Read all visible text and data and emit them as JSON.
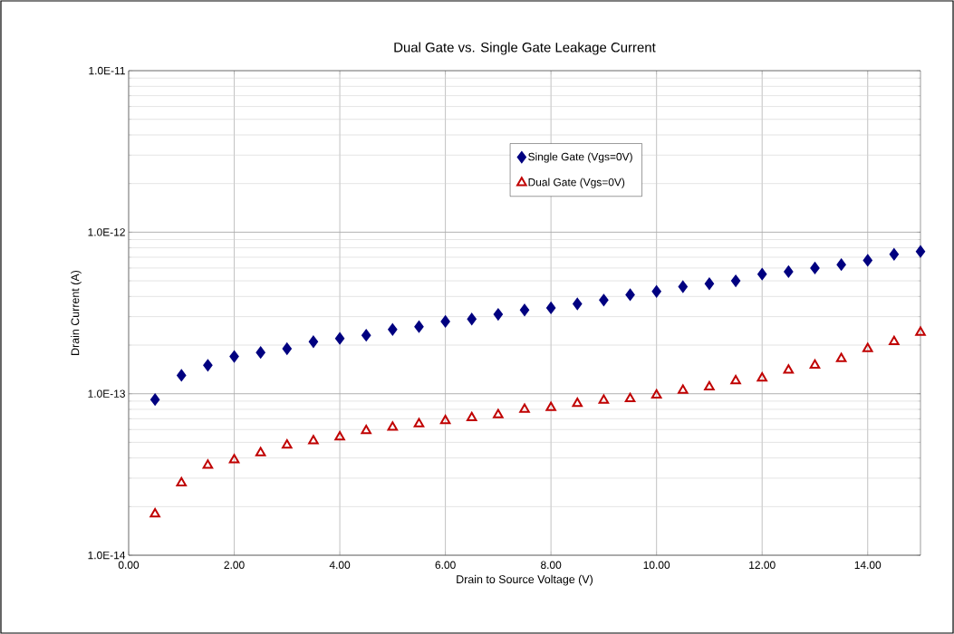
{
  "chart_data": {
    "type": "scatter",
    "title": "Dual Gate vs. Single Gate Leakage Current",
    "xlabel": "Drain to Source Voltage (V)",
    "ylabel": "Drain Current (A)",
    "x": [
      0.5,
      1.0,
      1.5,
      2.0,
      2.5,
      3.0,
      3.5,
      4.0,
      4.5,
      5.0,
      5.5,
      6.0,
      6.5,
      7.0,
      7.5,
      8.0,
      8.5,
      9.0,
      9.5,
      10.0,
      10.5,
      11.0,
      11.5,
      12.0,
      12.5,
      13.0,
      13.5,
      14.0,
      14.5,
      15.0
    ],
    "series": [
      {
        "name": "Single Gate (Vgs=0V)",
        "color": "#000080",
        "marker": "diamond",
        "values": [
          9.2e-14,
          1.3e-13,
          1.5e-13,
          1.7e-13,
          1.8e-13,
          1.9e-13,
          2.1e-13,
          2.2e-13,
          2.3e-13,
          2.5e-13,
          2.6e-13,
          2.8e-13,
          2.9e-13,
          3.1e-13,
          3.3e-13,
          3.4e-13,
          3.6e-13,
          3.8e-13,
          4.1e-13,
          4.3e-13,
          4.6e-13,
          4.8e-13,
          5e-13,
          5.5e-13,
          5.7e-13,
          6e-13,
          6.3e-13,
          6.7e-13,
          7.3e-13,
          7.6e-13
        ]
      },
      {
        "name": "Dual Gate (Vgs=0V)",
        "color": "#c00000",
        "marker": "triangle",
        "values": [
          1.8e-14,
          2.8e-14,
          3.6e-14,
          3.9e-14,
          4.3e-14,
          4.8e-14,
          5.1e-14,
          5.4e-14,
          5.9e-14,
          6.2e-14,
          6.5e-14,
          6.8e-14,
          7.1e-14,
          7.4e-14,
          8e-14,
          8.2e-14,
          8.7e-14,
          9.1e-14,
          9.3e-14,
          9.8e-14,
          1.05e-13,
          1.1e-13,
          1.2e-13,
          1.25e-13,
          1.4e-13,
          1.5e-13,
          1.65e-13,
          1.9e-13,
          2.1e-13,
          2.4e-13
        ]
      }
    ],
    "log": "y",
    "grid": true,
    "legend": "top",
    "xlim": [
      0,
      15
    ],
    "ylim": [
      1e-14,
      1e-11
    ],
    "xticks": [
      {
        "value": 0,
        "label": "0.00"
      },
      {
        "value": 2,
        "label": "2.00"
      },
      {
        "value": 4,
        "label": "4.00"
      },
      {
        "value": 6,
        "label": "6.00"
      },
      {
        "value": 8,
        "label": "8.00"
      },
      {
        "value": 10,
        "label": "10.00"
      },
      {
        "value": 12,
        "label": "12.00"
      },
      {
        "value": 14,
        "label": "14.00"
      }
    ],
    "yticks": [
      {
        "value": 1e-14,
        "label": "1.0E-14"
      },
      {
        "value": 1e-13,
        "label": "1.0E-13"
      },
      {
        "value": 1e-12,
        "label": "1.0E-12"
      },
      {
        "value": 1e-11,
        "label": "1.0E-11"
      }
    ]
  }
}
